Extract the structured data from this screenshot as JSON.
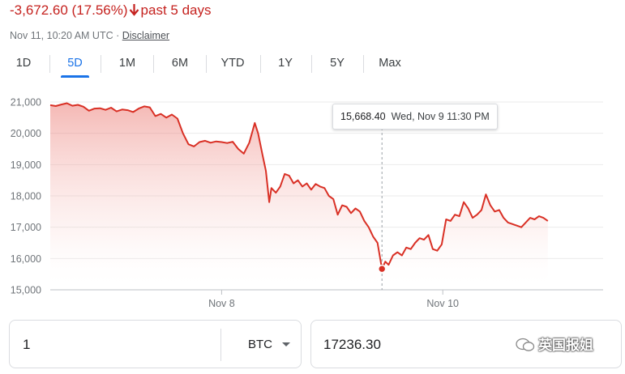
{
  "header": {
    "change": "-3,672.60 (17.56%)",
    "period": "past 5 days",
    "timestamp": "Nov 11, 10:20 AM UTC · ",
    "disclaimer": "Disclaimer"
  },
  "tabs": [
    {
      "label": "1D",
      "active": false
    },
    {
      "label": "5D",
      "active": true
    },
    {
      "label": "1M",
      "active": false
    },
    {
      "label": "6M",
      "active": false
    },
    {
      "label": "YTD",
      "active": false
    },
    {
      "label": "1Y",
      "active": false
    },
    {
      "label": "5Y",
      "active": false
    },
    {
      "label": "Max",
      "active": false
    }
  ],
  "tooltip": {
    "value": "15,668.40",
    "time": "Wed, Nov 9 11:30 PM"
  },
  "converter": {
    "amount": "1",
    "unit": "BTC",
    "result": "17236.30"
  },
  "watermark": "英国报姐",
  "colors": {
    "line": "#d93025",
    "negative": "#c5221f",
    "accent": "#1a73e8",
    "grid": "#ebebeb"
  },
  "chart_data": {
    "type": "area",
    "title": "",
    "xlabel": "",
    "ylabel": "",
    "ylim": [
      15000,
      21000
    ],
    "xlim": [
      0,
      5
    ],
    "y_ticks": [
      15000,
      16000,
      17000,
      18000,
      19000,
      20000,
      21000
    ],
    "y_tick_labels": [
      "15,000",
      "16,000",
      "17,000",
      "18,000",
      "19,000",
      "20,000",
      "21,000"
    ],
    "x_ticks": [
      {
        "x": 1.55,
        "label": "Nov 8"
      },
      {
        "x": 3.55,
        "label": "Nov 10"
      }
    ],
    "highlight": {
      "x": 3.0,
      "y": 15668.4
    },
    "series": [
      {
        "values": [
          [
            0.0,
            20900
          ],
          [
            0.05,
            20870
          ],
          [
            0.1,
            20920
          ],
          [
            0.15,
            20960
          ],
          [
            0.2,
            20880
          ],
          [
            0.25,
            20910
          ],
          [
            0.3,
            20850
          ],
          [
            0.35,
            20720
          ],
          [
            0.4,
            20790
          ],
          [
            0.45,
            20800
          ],
          [
            0.5,
            20750
          ],
          [
            0.55,
            20820
          ],
          [
            0.6,
            20700
          ],
          [
            0.65,
            20760
          ],
          [
            0.7,
            20740
          ],
          [
            0.75,
            20680
          ],
          [
            0.8,
            20790
          ],
          [
            0.85,
            20860
          ],
          [
            0.9,
            20830
          ],
          [
            0.95,
            20550
          ],
          [
            1.0,
            20620
          ],
          [
            1.05,
            20500
          ],
          [
            1.1,
            20600
          ],
          [
            1.15,
            20470
          ],
          [
            1.2,
            20000
          ],
          [
            1.25,
            19650
          ],
          [
            1.3,
            19580
          ],
          [
            1.35,
            19720
          ],
          [
            1.4,
            19760
          ],
          [
            1.45,
            19700
          ],
          [
            1.5,
            19740
          ],
          [
            1.55,
            19720
          ],
          [
            1.6,
            19690
          ],
          [
            1.65,
            19730
          ],
          [
            1.7,
            19500
          ],
          [
            1.75,
            19350
          ],
          [
            1.8,
            19700
          ],
          [
            1.85,
            20330
          ],
          [
            1.88,
            20000
          ],
          [
            1.92,
            19300
          ],
          [
            1.95,
            18800
          ],
          [
            1.98,
            17800
          ],
          [
            2.0,
            18250
          ],
          [
            2.04,
            18100
          ],
          [
            2.08,
            18300
          ],
          [
            2.12,
            18700
          ],
          [
            2.16,
            18650
          ],
          [
            2.2,
            18400
          ],
          [
            2.24,
            18500
          ],
          [
            2.28,
            18300
          ],
          [
            2.32,
            18400
          ],
          [
            2.36,
            18200
          ],
          [
            2.4,
            18380
          ],
          [
            2.44,
            18300
          ],
          [
            2.48,
            18250
          ],
          [
            2.52,
            18000
          ],
          [
            2.56,
            17900
          ],
          [
            2.6,
            17400
          ],
          [
            2.64,
            17700
          ],
          [
            2.68,
            17650
          ],
          [
            2.72,
            17450
          ],
          [
            2.76,
            17600
          ],
          [
            2.8,
            17500
          ],
          [
            2.84,
            17200
          ],
          [
            2.88,
            17000
          ],
          [
            2.92,
            16700
          ],
          [
            2.96,
            16500
          ],
          [
            3.0,
            15668.4
          ],
          [
            3.03,
            15900
          ],
          [
            3.06,
            15800
          ],
          [
            3.1,
            16100
          ],
          [
            3.14,
            16200
          ],
          [
            3.18,
            16100
          ],
          [
            3.22,
            16350
          ],
          [
            3.26,
            16300
          ],
          [
            3.3,
            16500
          ],
          [
            3.34,
            16650
          ],
          [
            3.38,
            16600
          ],
          [
            3.42,
            16750
          ],
          [
            3.46,
            16300
          ],
          [
            3.5,
            16250
          ],
          [
            3.54,
            16450
          ],
          [
            3.58,
            17250
          ],
          [
            3.62,
            17200
          ],
          [
            3.66,
            17400
          ],
          [
            3.7,
            17350
          ],
          [
            3.74,
            17800
          ],
          [
            3.78,
            17600
          ],
          [
            3.82,
            17300
          ],
          [
            3.86,
            17400
          ],
          [
            3.9,
            17550
          ],
          [
            3.94,
            18050
          ],
          [
            3.98,
            17700
          ],
          [
            4.02,
            17500
          ],
          [
            4.06,
            17550
          ],
          [
            4.1,
            17300
          ],
          [
            4.14,
            17150
          ],
          [
            4.18,
            17100
          ],
          [
            4.22,
            17050
          ],
          [
            4.26,
            17000
          ],
          [
            4.3,
            17150
          ],
          [
            4.34,
            17300
          ],
          [
            4.38,
            17250
          ],
          [
            4.42,
            17350
          ],
          [
            4.46,
            17300
          ],
          [
            4.5,
            17200
          ]
        ]
      }
    ]
  }
}
